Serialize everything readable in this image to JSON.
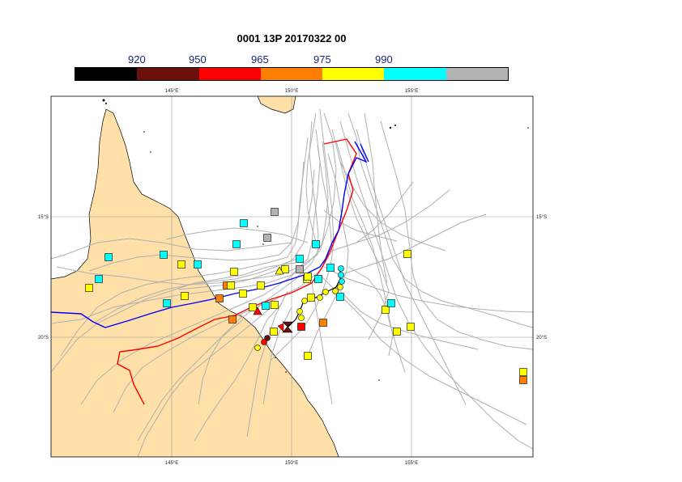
{
  "title": "0001 13P 20170322 00",
  "colorbar": {
    "labels": [
      "920",
      "950",
      "965",
      "975",
      "990"
    ],
    "colors": [
      "#000000",
      "#6b0f0a",
      "#ff0000",
      "#ff8000",
      "#ffff00",
      "#00ffff",
      "#b3b3b3"
    ]
  },
  "map": {
    "lon_labels": [
      "145°E",
      "150°E",
      "155°E"
    ],
    "lat_labels": [
      "15°S",
      "20°S"
    ],
    "land_color": "#ffe0a8",
    "ocean_color": "#ffffff",
    "ensemble_color": "#b0b0b0",
    "track_colors": {
      "observed": "#ff0000",
      "forecast": "#0000ff",
      "analysis": "#000000"
    }
  }
}
